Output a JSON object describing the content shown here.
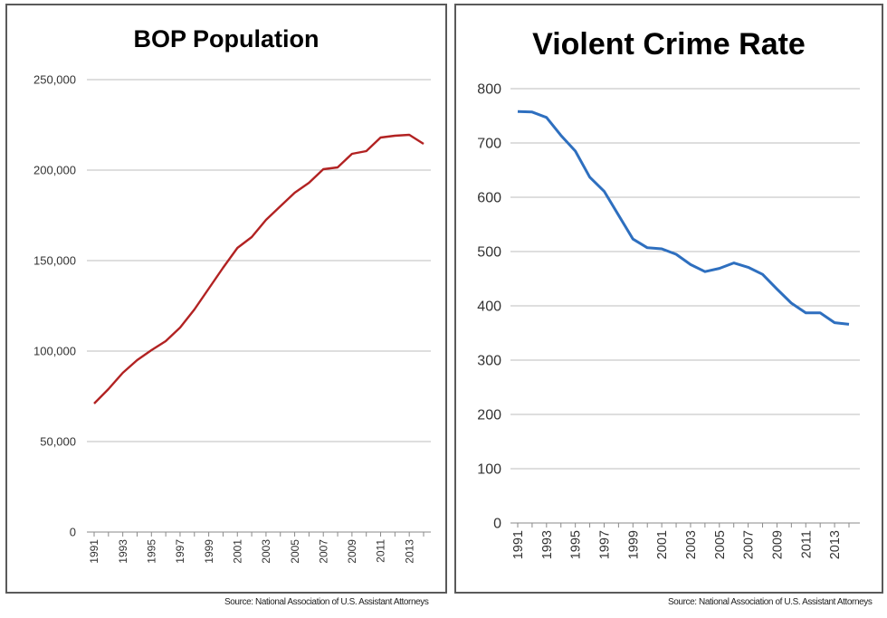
{
  "colors": {
    "left_line": "#b22222",
    "right_line": "#2e6fbf",
    "grid": "#bdbdbd"
  },
  "chart_data": [
    {
      "type": "line",
      "title": "BOP Population",
      "xlabel": "",
      "ylabel": "",
      "x": [
        1991,
        1992,
        1993,
        1994,
        1995,
        1996,
        1997,
        1998,
        1999,
        2000,
        2001,
        2002,
        2003,
        2004,
        2005,
        2006,
        2007,
        2008,
        2009,
        2010,
        2011,
        2012,
        2013,
        2014
      ],
      "x_tick_labels": [
        "1991",
        "1993",
        "1995",
        "1997",
        "1999",
        "2001",
        "2003",
        "2005",
        "2007",
        "2009",
        "2011",
        "2013"
      ],
      "y_tick_labels": [
        "0",
        "50,000",
        "100,000",
        "150,000",
        "200,000",
        "250,000"
      ],
      "ylim": [
        0,
        250000
      ],
      "grid": true,
      "series": [
        {
          "values": [
            71000,
            79000,
            88000,
            95000,
            100500,
            105500,
            113000,
            123000,
            134500,
            146000,
            157000,
            163000,
            172500,
            180000,
            187500,
            193000,
            200500,
            201500,
            209000,
            210500,
            218000,
            219000,
            219500,
            214500
          ]
        }
      ],
      "source": "Source: National Association of U.S. Assistant Attorneys"
    },
    {
      "type": "line",
      "title": "Violent Crime Rate",
      "xlabel": "",
      "ylabel": "",
      "x": [
        1991,
        1992,
        1993,
        1994,
        1995,
        1996,
        1997,
        1998,
        1999,
        2000,
        2001,
        2002,
        2003,
        2004,
        2005,
        2006,
        2007,
        2008,
        2009,
        2010,
        2011,
        2012,
        2013,
        2014
      ],
      "x_tick_labels": [
        "1991",
        "1993",
        "1995",
        "1997",
        "1999",
        "2001",
        "2003",
        "2005",
        "2007",
        "2009",
        "2011",
        "2013"
      ],
      "y_tick_labels": [
        "0",
        "100",
        "200",
        "300",
        "400",
        "500",
        "600",
        "700",
        "800"
      ],
      "ylim": [
        0,
        800
      ],
      "grid": true,
      "series": [
        {
          "values": [
            758,
            757,
            747,
            714,
            685,
            637,
            611,
            567,
            523,
            507,
            505,
            495,
            476,
            463,
            469,
            479,
            471,
            458,
            431,
            405,
            387,
            387,
            369,
            366
          ]
        }
      ],
      "source": "Source: National Association of U.S. Assistant Attorneys"
    }
  ]
}
